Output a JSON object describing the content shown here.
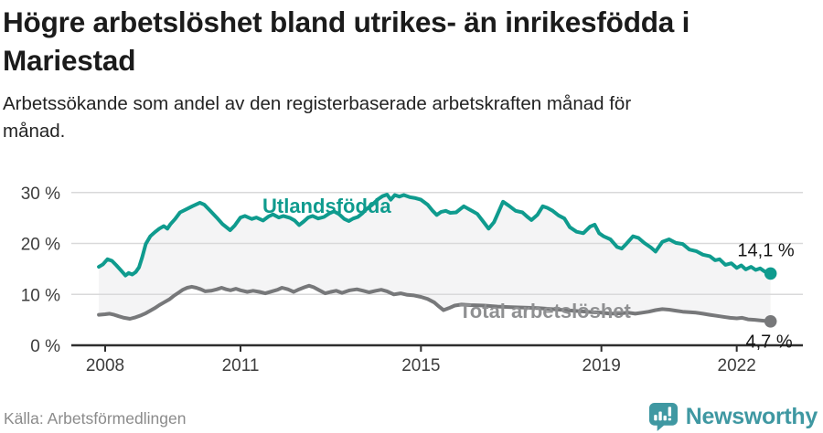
{
  "header": {
    "title": "Högre arbetslöshet bland utrikes- än inrikesfödda i Mariestad",
    "subtitle": "Arbetssökande som andel av den registerbaserade arbetskraften månad för månad."
  },
  "footer": {
    "source": "Källa: Arbetsförmedlingen",
    "brand": "Newsworthy",
    "brand_color": "#3f98a2"
  },
  "colors": {
    "accent_teal": "#0f9b8e",
    "line_gray": "#77787a",
    "gray_label": "#8f9092",
    "band_fill": "#f4f4f5",
    "grid": "#d9d9da",
    "axis": "#2e2e2e",
    "tick_label": "#3d3d3d",
    "value_label": "#161616"
  },
  "chart_data": {
    "type": "line",
    "title": "Högre arbetslöshet bland utrikes- än inrikesfödda i Mariestad",
    "subtitle": "Arbetssökande som andel av den registerbaserade arbetskraften månad för månad.",
    "xlabel": "",
    "ylabel": "",
    "xlim": [
      2007.85,
      2023.05
    ],
    "ylim": [
      0,
      32
    ],
    "grid": true,
    "x_ticks": [
      {
        "value": 2008,
        "label": "2008"
      },
      {
        "value": 2011,
        "label": "2011"
      },
      {
        "value": 2015,
        "label": "2015"
      },
      {
        "value": 2019,
        "label": "2019"
      },
      {
        "value": 2022,
        "label": "2022"
      }
    ],
    "y_ticks": [
      {
        "value": 0,
        "label": "0 %"
      },
      {
        "value": 10,
        "label": "10 %"
      },
      {
        "value": 20,
        "label": "20 %"
      },
      {
        "value": 30,
        "label": "30 %"
      }
    ],
    "series": [
      {
        "name": "Utlandsfödda",
        "color": "#0f9b8e",
        "label_color": "#0f9b8e",
        "end_label": "14,1 %",
        "last_value": 14.1,
        "points": [
          [
            2007.86,
            15.4
          ],
          [
            2007.95,
            15.9
          ],
          [
            2008.05,
            16.9
          ],
          [
            2008.15,
            16.6
          ],
          [
            2008.25,
            15.7
          ],
          [
            2008.35,
            14.7
          ],
          [
            2008.45,
            13.7
          ],
          [
            2008.52,
            14.2
          ],
          [
            2008.6,
            13.9
          ],
          [
            2008.68,
            14.4
          ],
          [
            2008.75,
            15.3
          ],
          [
            2008.82,
            17.3
          ],
          [
            2008.9,
            19.9
          ],
          [
            2009.0,
            21.4
          ],
          [
            2009.1,
            22.2
          ],
          [
            2009.2,
            22.9
          ],
          [
            2009.3,
            23.4
          ],
          [
            2009.38,
            22.9
          ],
          [
            2009.45,
            23.8
          ],
          [
            2009.55,
            24.8
          ],
          [
            2009.66,
            26.1
          ],
          [
            2009.8,
            26.7
          ],
          [
            2009.93,
            27.3
          ],
          [
            2010.1,
            28.0
          ],
          [
            2010.2,
            27.6
          ],
          [
            2010.33,
            26.4
          ],
          [
            2010.47,
            25.1
          ],
          [
            2010.6,
            23.8
          ],
          [
            2010.77,
            22.6
          ],
          [
            2010.87,
            23.5
          ],
          [
            2011.0,
            25.1
          ],
          [
            2011.1,
            25.4
          ],
          [
            2011.25,
            24.8
          ],
          [
            2011.35,
            25.1
          ],
          [
            2011.5,
            24.5
          ],
          [
            2011.62,
            25.3
          ],
          [
            2011.72,
            25.7
          ],
          [
            2011.85,
            25.1
          ],
          [
            2011.95,
            25.4
          ],
          [
            2012.1,
            25.0
          ],
          [
            2012.2,
            24.5
          ],
          [
            2012.3,
            23.6
          ],
          [
            2012.4,
            24.3
          ],
          [
            2012.5,
            25.1
          ],
          [
            2012.6,
            25.4
          ],
          [
            2012.72,
            24.9
          ],
          [
            2012.85,
            25.2
          ],
          [
            2012.97,
            25.9
          ],
          [
            2013.07,
            26.3
          ],
          [
            2013.18,
            25.8
          ],
          [
            2013.3,
            24.8
          ],
          [
            2013.4,
            24.4
          ],
          [
            2013.5,
            24.9
          ],
          [
            2013.6,
            25.2
          ],
          [
            2013.7,
            25.9
          ],
          [
            2013.8,
            26.8
          ],
          [
            2013.92,
            27.6
          ],
          [
            2014.05,
            28.7
          ],
          [
            2014.15,
            29.3
          ],
          [
            2014.25,
            29.6
          ],
          [
            2014.33,
            28.6
          ],
          [
            2014.42,
            29.5
          ],
          [
            2014.52,
            29.2
          ],
          [
            2014.62,
            29.5
          ],
          [
            2014.75,
            29.1
          ],
          [
            2014.88,
            28.9
          ],
          [
            2015.0,
            28.6
          ],
          [
            2015.15,
            27.6
          ],
          [
            2015.25,
            26.5
          ],
          [
            2015.35,
            25.6
          ],
          [
            2015.45,
            26.2
          ],
          [
            2015.55,
            26.4
          ],
          [
            2015.65,
            26.0
          ],
          [
            2015.78,
            26.1
          ],
          [
            2015.88,
            26.8
          ],
          [
            2015.95,
            27.3
          ],
          [
            2016.05,
            26.8
          ],
          [
            2016.15,
            26.3
          ],
          [
            2016.25,
            25.8
          ],
          [
            2016.38,
            24.3
          ],
          [
            2016.5,
            22.9
          ],
          [
            2016.62,
            24.2
          ],
          [
            2016.72,
            26.2
          ],
          [
            2016.82,
            28.2
          ],
          [
            2016.95,
            27.4
          ],
          [
            2017.1,
            26.4
          ],
          [
            2017.25,
            26.1
          ],
          [
            2017.35,
            25.3
          ],
          [
            2017.45,
            24.6
          ],
          [
            2017.58,
            25.6
          ],
          [
            2017.7,
            27.3
          ],
          [
            2017.8,
            27.0
          ],
          [
            2017.92,
            26.4
          ],
          [
            2018.05,
            25.5
          ],
          [
            2018.18,
            24.9
          ],
          [
            2018.3,
            23.2
          ],
          [
            2018.45,
            22.3
          ],
          [
            2018.6,
            22.0
          ],
          [
            2018.75,
            23.3
          ],
          [
            2018.85,
            23.7
          ],
          [
            2018.95,
            22.0
          ],
          [
            2019.05,
            21.4
          ],
          [
            2019.2,
            20.8
          ],
          [
            2019.35,
            19.3
          ],
          [
            2019.45,
            19.0
          ],
          [
            2019.55,
            19.9
          ],
          [
            2019.7,
            21.4
          ],
          [
            2019.82,
            21.1
          ],
          [
            2019.95,
            20.1
          ],
          [
            2020.1,
            19.2
          ],
          [
            2020.2,
            18.4
          ],
          [
            2020.35,
            20.3
          ],
          [
            2020.5,
            20.8
          ],
          [
            2020.65,
            20.1
          ],
          [
            2020.8,
            19.9
          ],
          [
            2020.95,
            18.8
          ],
          [
            2021.1,
            18.5
          ],
          [
            2021.25,
            17.8
          ],
          [
            2021.4,
            17.5
          ],
          [
            2021.52,
            16.7
          ],
          [
            2021.62,
            16.9
          ],
          [
            2021.75,
            15.8
          ],
          [
            2021.88,
            16.1
          ],
          [
            2022.0,
            15.2
          ],
          [
            2022.1,
            15.7
          ],
          [
            2022.2,
            14.9
          ],
          [
            2022.32,
            15.4
          ],
          [
            2022.42,
            14.8
          ],
          [
            2022.52,
            15.1
          ],
          [
            2022.62,
            14.5
          ],
          [
            2022.7,
            14.3
          ],
          [
            2022.75,
            14.1
          ]
        ]
      },
      {
        "name": "Total arbetslöshet",
        "color": "#77787a",
        "label_color": "#8f9092",
        "end_label": "4,7 %",
        "last_value": 4.7,
        "points": [
          [
            2007.86,
            6.0
          ],
          [
            2008.0,
            6.1
          ],
          [
            2008.1,
            6.2
          ],
          [
            2008.2,
            6.0
          ],
          [
            2008.3,
            5.7
          ],
          [
            2008.42,
            5.4
          ],
          [
            2008.55,
            5.2
          ],
          [
            2008.68,
            5.5
          ],
          [
            2008.8,
            5.9
          ],
          [
            2008.9,
            6.3
          ],
          [
            2009.0,
            6.8
          ],
          [
            2009.1,
            7.3
          ],
          [
            2009.2,
            7.9
          ],
          [
            2009.3,
            8.4
          ],
          [
            2009.42,
            9.0
          ],
          [
            2009.52,
            9.7
          ],
          [
            2009.62,
            10.3
          ],
          [
            2009.72,
            10.9
          ],
          [
            2009.82,
            11.3
          ],
          [
            2009.92,
            11.5
          ],
          [
            2010.02,
            11.3
          ],
          [
            2010.12,
            11.0
          ],
          [
            2010.22,
            10.6
          ],
          [
            2010.35,
            10.7
          ],
          [
            2010.48,
            11.0
          ],
          [
            2010.58,
            11.3
          ],
          [
            2010.68,
            11.0
          ],
          [
            2010.78,
            10.8
          ],
          [
            2010.9,
            11.1
          ],
          [
            2011.0,
            10.8
          ],
          [
            2011.15,
            10.5
          ],
          [
            2011.28,
            10.7
          ],
          [
            2011.42,
            10.5
          ],
          [
            2011.55,
            10.2
          ],
          [
            2011.7,
            10.6
          ],
          [
            2011.82,
            10.9
          ],
          [
            2011.92,
            11.3
          ],
          [
            2012.05,
            11.0
          ],
          [
            2012.18,
            10.5
          ],
          [
            2012.3,
            11.0
          ],
          [
            2012.42,
            11.4
          ],
          [
            2012.52,
            11.7
          ],
          [
            2012.62,
            11.4
          ],
          [
            2012.75,
            10.8
          ],
          [
            2012.88,
            10.2
          ],
          [
            2013.0,
            10.5
          ],
          [
            2013.12,
            10.7
          ],
          [
            2013.25,
            10.3
          ],
          [
            2013.42,
            10.8
          ],
          [
            2013.58,
            11.0
          ],
          [
            2013.72,
            10.7
          ],
          [
            2013.85,
            10.4
          ],
          [
            2014.0,
            10.7
          ],
          [
            2014.12,
            10.9
          ],
          [
            2014.25,
            10.6
          ],
          [
            2014.4,
            10.0
          ],
          [
            2014.55,
            10.2
          ],
          [
            2014.7,
            9.9
          ],
          [
            2014.85,
            9.8
          ],
          [
            2015.0,
            9.5
          ],
          [
            2015.15,
            9.1
          ],
          [
            2015.3,
            8.4
          ],
          [
            2015.4,
            7.6
          ],
          [
            2015.5,
            6.9
          ],
          [
            2015.62,
            7.3
          ],
          [
            2015.75,
            7.8
          ],
          [
            2015.9,
            8.0
          ],
          [
            2016.1,
            7.9
          ],
          [
            2016.4,
            7.8
          ],
          [
            2016.7,
            7.6
          ],
          [
            2017.0,
            7.5
          ],
          [
            2017.3,
            7.4
          ],
          [
            2017.6,
            7.3
          ],
          [
            2017.9,
            7.1
          ],
          [
            2018.2,
            6.9
          ],
          [
            2018.5,
            6.7
          ],
          [
            2018.8,
            6.5
          ],
          [
            2019.0,
            6.4
          ],
          [
            2019.2,
            6.2
          ],
          [
            2019.45,
            6.3
          ],
          [
            2019.6,
            6.4
          ],
          [
            2019.75,
            6.2
          ],
          [
            2019.9,
            6.4
          ],
          [
            2020.05,
            6.6
          ],
          [
            2020.2,
            6.9
          ],
          [
            2020.35,
            7.1
          ],
          [
            2020.5,
            7.0
          ],
          [
            2020.65,
            6.8
          ],
          [
            2020.8,
            6.6
          ],
          [
            2020.95,
            6.5
          ],
          [
            2021.1,
            6.4
          ],
          [
            2021.25,
            6.2
          ],
          [
            2021.4,
            6.0
          ],
          [
            2021.55,
            5.8
          ],
          [
            2021.7,
            5.6
          ],
          [
            2021.85,
            5.4
          ],
          [
            2022.0,
            5.3
          ],
          [
            2022.12,
            5.4
          ],
          [
            2022.25,
            5.1
          ],
          [
            2022.4,
            5.0
          ],
          [
            2022.52,
            4.9
          ],
          [
            2022.62,
            4.8
          ],
          [
            2022.75,
            4.7
          ]
        ]
      }
    ],
    "legend_position": "direct-labels-on-lines"
  }
}
